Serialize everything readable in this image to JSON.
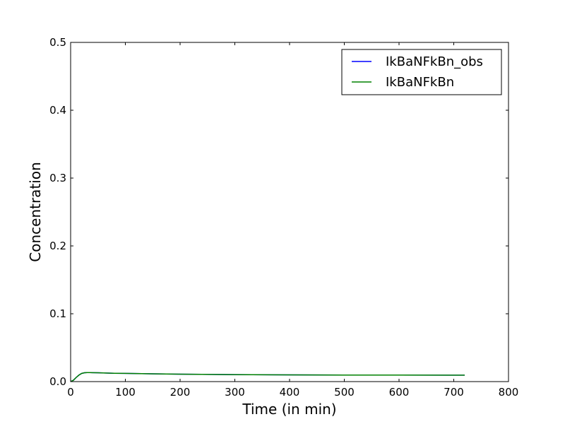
{
  "chart_data": {
    "type": "line",
    "title": "",
    "xlabel": "Time (in min)",
    "ylabel": "Concentration",
    "xlim": [
      0,
      800
    ],
    "ylim": [
      0,
      0.5
    ],
    "xticks": [
      0,
      100,
      200,
      300,
      400,
      500,
      600,
      700,
      800
    ],
    "yticks": [
      0.0,
      0.1,
      0.2,
      0.3,
      0.4,
      0.5
    ],
    "xtick_labels": [
      "0",
      "100",
      "200",
      "300",
      "400",
      "500",
      "600",
      "700",
      "800"
    ],
    "ytick_labels": [
      "0.0",
      "0.1",
      "0.2",
      "0.3",
      "0.4",
      "0.5"
    ],
    "grid": false,
    "legend_position": "top-right",
    "series": [
      {
        "name": "IkBaNFkBn_obs",
        "color": "#0000ff",
        "x": [
          0,
          5,
          10,
          15,
          20,
          25,
          30,
          40,
          50,
          60,
          80,
          100,
          150,
          200,
          300,
          400,
          500,
          600,
          720
        ],
        "y": [
          0.0,
          0.002,
          0.006,
          0.0095,
          0.012,
          0.013,
          0.0133,
          0.0132,
          0.013,
          0.0127,
          0.0123,
          0.0121,
          0.0115,
          0.011,
          0.0103,
          0.0099,
          0.0097,
          0.0096,
          0.0095
        ]
      },
      {
        "name": "IkBaNFkBn",
        "color": "#008000",
        "x": [
          0,
          5,
          10,
          15,
          20,
          25,
          30,
          40,
          50,
          60,
          80,
          100,
          150,
          200,
          300,
          400,
          500,
          600,
          720
        ],
        "y": [
          0.0,
          0.002,
          0.006,
          0.0095,
          0.012,
          0.013,
          0.0133,
          0.0132,
          0.013,
          0.0127,
          0.0123,
          0.0121,
          0.0115,
          0.011,
          0.0103,
          0.0099,
          0.0097,
          0.0096,
          0.0095
        ]
      }
    ]
  }
}
